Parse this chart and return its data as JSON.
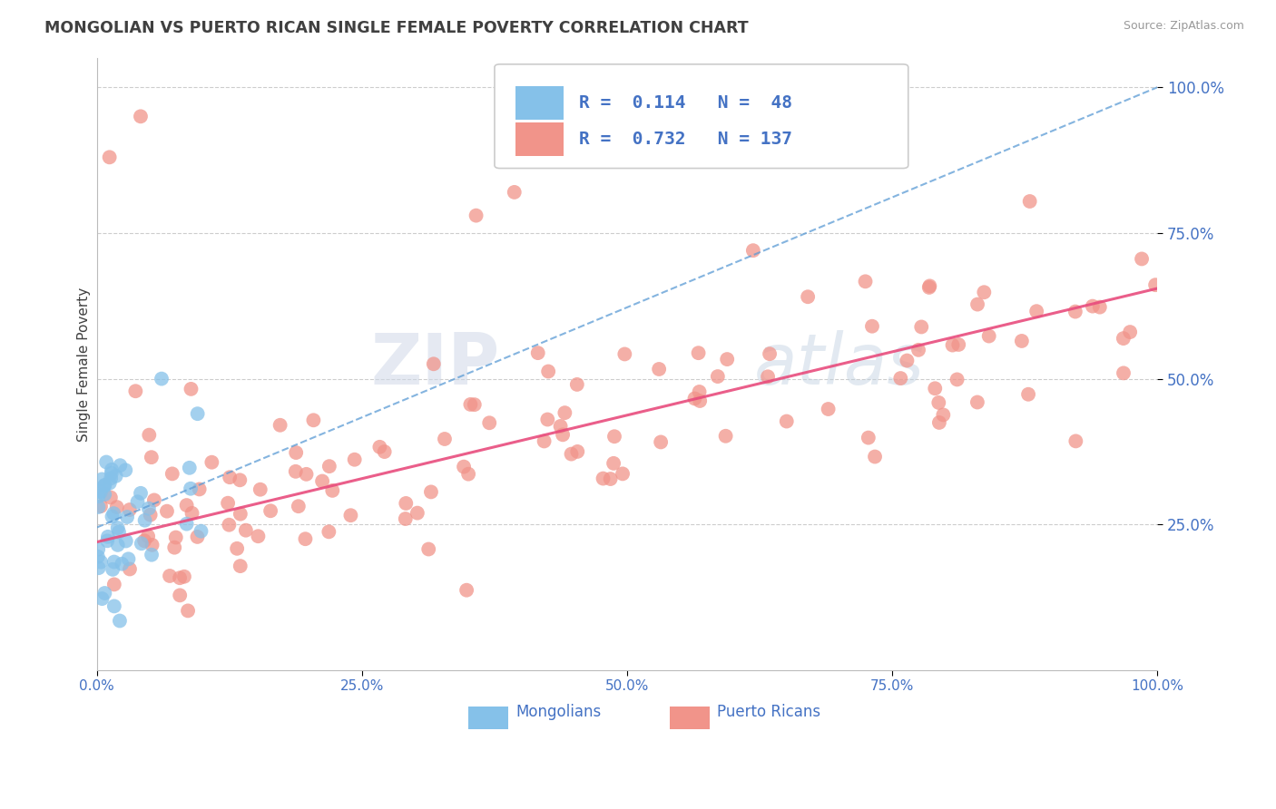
{
  "title": "MONGOLIAN VS PUERTO RICAN SINGLE FEMALE POVERTY CORRELATION CHART",
  "source": "Source: ZipAtlas.com",
  "ylabel": "Single Female Poverty",
  "watermark_zip": "ZIP",
  "watermark_atlas": "atlas",
  "legend_line1": "R =  0.114   N =  48",
  "legend_line2": "R =  0.732   N = 137",
  "bottom_legend": [
    "Mongolians",
    "Puerto Ricans"
  ],
  "mongolian_color": "#85C1E9",
  "puerto_rican_color": "#F1948A",
  "trend_mongolian_color": "#5B9BD5",
  "trend_puerto_rican_color": "#E84C7D",
  "axis_label_color": "#4472C4",
  "title_color": "#404040",
  "grid_color": "#C8C8C8",
  "background_color": "#FFFFFF",
  "xlim": [
    0.0,
    1.0
  ],
  "ylim": [
    0.0,
    1.05
  ],
  "pr_trend_x0": 0.0,
  "pr_trend_y0": 0.22,
  "pr_trend_x1": 1.0,
  "pr_trend_y1": 0.655,
  "mong_trend_x0": 0.0,
  "mong_trend_y0": 0.245,
  "mong_trend_x1": 1.0,
  "mong_trend_y1": 1.0
}
